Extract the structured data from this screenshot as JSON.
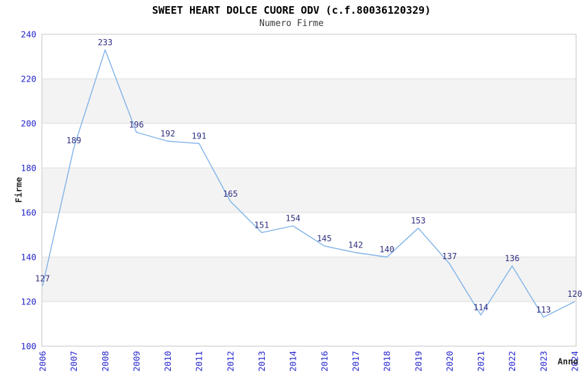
{
  "chart_data": {
    "type": "line",
    "title": "SWEET HEART DOLCE CUORE ODV (c.f.80036120329)",
    "subtitle": "Numero Firme",
    "xlabel": "Anno",
    "ylabel": "Firme",
    "categories": [
      "2006",
      "2007",
      "2008",
      "2009",
      "2010",
      "2011",
      "2012",
      "2013",
      "2014",
      "2016",
      "2017",
      "2018",
      "2019",
      "2020",
      "2021",
      "2022",
      "2023",
      "2024"
    ],
    "values": [
      127,
      189,
      233,
      196,
      192,
      191,
      165,
      151,
      154,
      145,
      142,
      140,
      153,
      137,
      114,
      136,
      113,
      120
    ],
    "ylim": [
      100,
      240
    ],
    "ytick_step": 20,
    "yticks": [
      100,
      120,
      140,
      160,
      180,
      200,
      220,
      240
    ],
    "grid": "horizontal-bands-alternating",
    "legend": "none",
    "data_labels_visible": true,
    "x_tick_rotation_deg": 90,
    "colors": {
      "line": "#7fb2e8",
      "data_label": "#303080",
      "tick_label": "#2424cc",
      "band_fill": "#f3f3f3",
      "gridline": "#dddddd",
      "plot_border": "#c6c6c6",
      "title": "#000000",
      "subtitle": "#3a3a3a",
      "axis_label": "#262626",
      "background": "#ffffff"
    }
  }
}
